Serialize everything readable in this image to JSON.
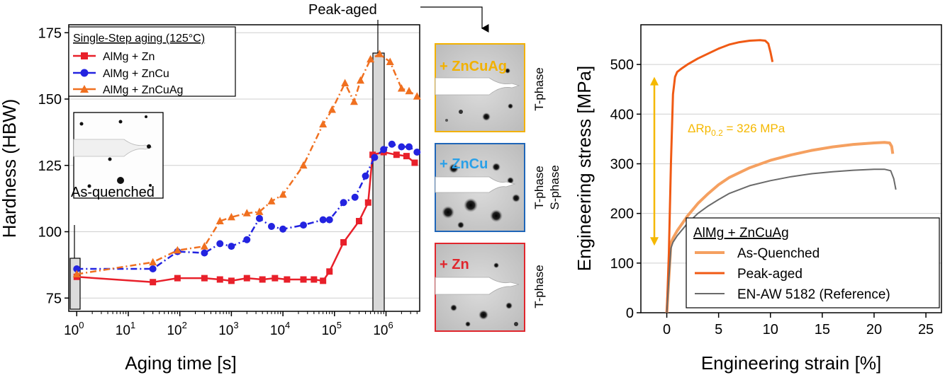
{
  "chart_data": [
    {
      "type": "line",
      "xscale": "log",
      "xlabel": "Aging time [s]",
      "ylabel": "Hardness (HBW)",
      "xlim": [
        0.7,
        4500000
      ],
      "ylim": [
        70,
        178
      ],
      "x_ticks": [
        1,
        10,
        100,
        1000,
        10000,
        100000,
        1000000
      ],
      "x_tick_labels": [
        {
          "base": "10",
          "exp": "0"
        },
        {
          "base": "10",
          "exp": "1"
        },
        {
          "base": "10",
          "exp": "2"
        },
        {
          "base": "10",
          "exp": "3"
        },
        {
          "base": "10",
          "exp": "4"
        },
        {
          "base": "10",
          "exp": "5"
        },
        {
          "base": "10",
          "exp": "6"
        }
      ],
      "y_ticks": [
        75,
        100,
        125,
        150,
        175
      ],
      "y_tick_labels": [
        "75",
        "100",
        "125",
        "150",
        "175"
      ],
      "grid": true,
      "legend_title": "Single-Step aging (125°C)",
      "legend_position": "top-left",
      "series": [
        {
          "name": "AlMg + Zn",
          "color": "#e8202a",
          "marker": "square",
          "line": "solid",
          "x": [
            1,
            30,
            90,
            300,
            600,
            1000,
            2000,
            4000,
            7000,
            12000,
            25000,
            40000,
            60000,
            80000,
            150000,
            300000,
            450000,
            550000,
            900000,
            1600000,
            2500000,
            3600000
          ],
          "y": [
            83,
            81,
            82.5,
            82.5,
            82,
            81.5,
            82.5,
            82,
            82.5,
            82,
            82,
            82,
            81.5,
            85,
            96,
            104,
            111,
            129,
            130,
            129,
            128.5,
            126
          ]
        },
        {
          "name": "AlMg + ZnCu",
          "color": "#2323e0",
          "marker": "circle",
          "line": "dash-dot",
          "x": [
            1,
            30,
            90,
            300,
            600,
            1000,
            2000,
            3500,
            6000,
            10000,
            25000,
            60000,
            80000,
            150000,
            250000,
            400000,
            600000,
            900000,
            1300000,
            2000000,
            2800000,
            4000000
          ],
          "y": [
            86,
            86,
            92.5,
            92,
            95.5,
            94.5,
            97,
            105,
            102,
            101,
            102.5,
            104.5,
            104.5,
            111,
            113,
            121,
            128,
            131,
            133,
            132,
            132,
            130
          ]
        },
        {
          "name": "AlMg + ZnCuAg",
          "color": "#f07020",
          "marker": "triangle",
          "line": "dash-dot",
          "x": [
            1,
            30,
            90,
            300,
            600,
            1000,
            2000,
            3500,
            6000,
            10000,
            25000,
            60000,
            90000,
            160000,
            240000,
            320000,
            500000,
            750000,
            1200000,
            2000000,
            2800000,
            4000000
          ],
          "y": [
            84,
            88.5,
            93,
            94.5,
            104,
            105.5,
            107,
            107.5,
            111.5,
            114,
            125,
            140.5,
            146,
            156,
            149,
            157,
            165,
            167,
            164,
            154,
            153,
            151
          ]
        }
      ],
      "annotations": [
        "As-quenched",
        "Peak-aged"
      ]
    },
    {
      "type": "line",
      "xlabel": "Engineering strain [%]",
      "ylabel": "Engineering stress [MPa]",
      "xlim": [
        -2.5,
        26.5
      ],
      "ylim": [
        0,
        580
      ],
      "x_ticks": [
        0,
        5,
        10,
        15,
        20,
        25
      ],
      "x_tick_labels": [
        "0",
        "5",
        "10",
        "15",
        "20",
        "25"
      ],
      "y_ticks": [
        0,
        100,
        200,
        300,
        400,
        500
      ],
      "y_tick_labels": [
        "0",
        "100",
        "200",
        "300",
        "400",
        "500"
      ],
      "grid": true,
      "legend_title": "AlMg + ZnCuAg",
      "legend_position": "bottom-right",
      "annotation_arrow": {
        "x": -1.2,
        "y_from": 135,
        "y_to": 475,
        "color": "#f5b800"
      },
      "annotation_label": {
        "prefix": "ΔRp",
        "subscript": "0.2",
        "suffix": " = 326 MPa",
        "color": "#f5b800"
      },
      "series": [
        {
          "name": "As-Quenched",
          "color": "#f5a060",
          "width": 4,
          "x": [
            0,
            0.2,
            0.4,
            0.6,
            1,
            2,
            3,
            4,
            5,
            6,
            8,
            10,
            12,
            14,
            16,
            18,
            20,
            21,
            21.5,
            21.7,
            21.8
          ],
          "y": [
            0,
            70,
            140,
            150,
            165,
            195,
            220,
            240,
            258,
            272,
            292,
            307,
            318,
            327,
            334,
            339,
            342,
            343,
            342,
            335,
            320
          ]
        },
        {
          "name": "Peak-aged",
          "color": "#f05a14",
          "width": 3,
          "x": [
            0,
            0.2,
            0.4,
            0.6,
            0.8,
            1,
            1.5,
            2,
            3,
            4,
            5,
            6,
            7,
            8,
            9,
            9.5,
            9.8,
            10,
            10.2
          ],
          "y": [
            0,
            120,
            300,
            440,
            475,
            485,
            493,
            500,
            512,
            522,
            532,
            540,
            545,
            548,
            549,
            548,
            542,
            525,
            505
          ]
        },
        {
          "name": "EN-AW 5182 (Reference)",
          "color": "#6a6a6a",
          "width": 2,
          "x": [
            0,
            0.2,
            0.4,
            0.6,
            1,
            2,
            3,
            4,
            5,
            6,
            8,
            10,
            12,
            14,
            16,
            18,
            20,
            21,
            21.6,
            21.9,
            22.1
          ],
          "y": [
            0,
            70,
            130,
            142,
            155,
            180,
            200,
            215,
            228,
            240,
            256,
            266,
            274,
            280,
            284,
            287,
            289,
            289,
            286,
            270,
            248
          ]
        }
      ]
    }
  ],
  "images": [
    {
      "label": "As-quenched"
    },
    {
      "label": "+ ZnCuAg",
      "color": "#f2b100",
      "phase": [
        "T-phase"
      ]
    },
    {
      "label": "+ ZnCu",
      "color": "#1f66b8",
      "label_color": "#2aa0e8",
      "phase": [
        "T-phase",
        "S-phase"
      ]
    },
    {
      "label": "+ Zn",
      "color": "#e0262d",
      "phase": [
        "T-phase"
      ]
    }
  ]
}
